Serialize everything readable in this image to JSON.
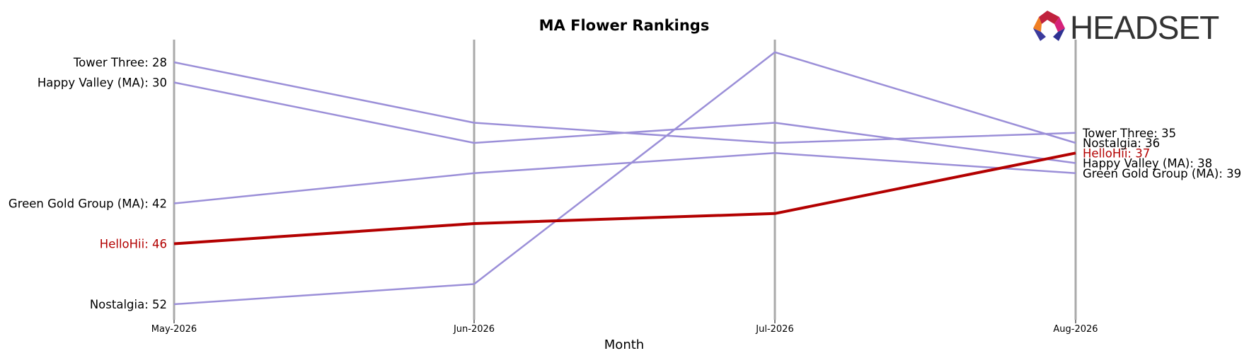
{
  "chart_data": {
    "type": "line",
    "title": "MA Flower Rankings",
    "xlabel": "Month",
    "ylabel": "",
    "categories": [
      "May-2026",
      "Jun-2026",
      "Jul-2026",
      "Aug-2026"
    ],
    "y_inverted": true,
    "ylim": [
      27,
      54
    ],
    "grid": false,
    "series": [
      {
        "name": "Tower Three",
        "values": [
          28,
          34,
          36,
          35
        ],
        "color": "#9b8fd8",
        "highlight": false,
        "start_label": "Tower Three: 28",
        "end_label": "Tower Three: 35"
      },
      {
        "name": "Happy Valley (MA)",
        "values": [
          30,
          36,
          34,
          38
        ],
        "color": "#9b8fd8",
        "highlight": false,
        "start_label": "Happy Valley (MA): 30",
        "end_label": "Happy Valley (MA): 38"
      },
      {
        "name": "Green Gold Group (MA)",
        "values": [
          42,
          39,
          37,
          39
        ],
        "color": "#9b8fd8",
        "highlight": false,
        "start_label": "Green Gold Group (MA): 42",
        "end_label": "Green Gold Group (MA): 39"
      },
      {
        "name": "HelloHii",
        "values": [
          46,
          44,
          43,
          37
        ],
        "color": "#b30000",
        "highlight": true,
        "start_label": "HelloHii: 46",
        "end_label": "HelloHii: 37"
      },
      {
        "name": "Nostalgia",
        "values": [
          52,
          50,
          27,
          36
        ],
        "color": "#9b8fd8",
        "highlight": false,
        "start_label": "Nostalgia: 52",
        "end_label": "Nostalgia: 36"
      }
    ]
  },
  "logo": {
    "text": "HEADSET"
  },
  "colors": {
    "axis_line": "#aaaaaa",
    "highlight": "#b30000",
    "series": "#9b8fd8"
  }
}
